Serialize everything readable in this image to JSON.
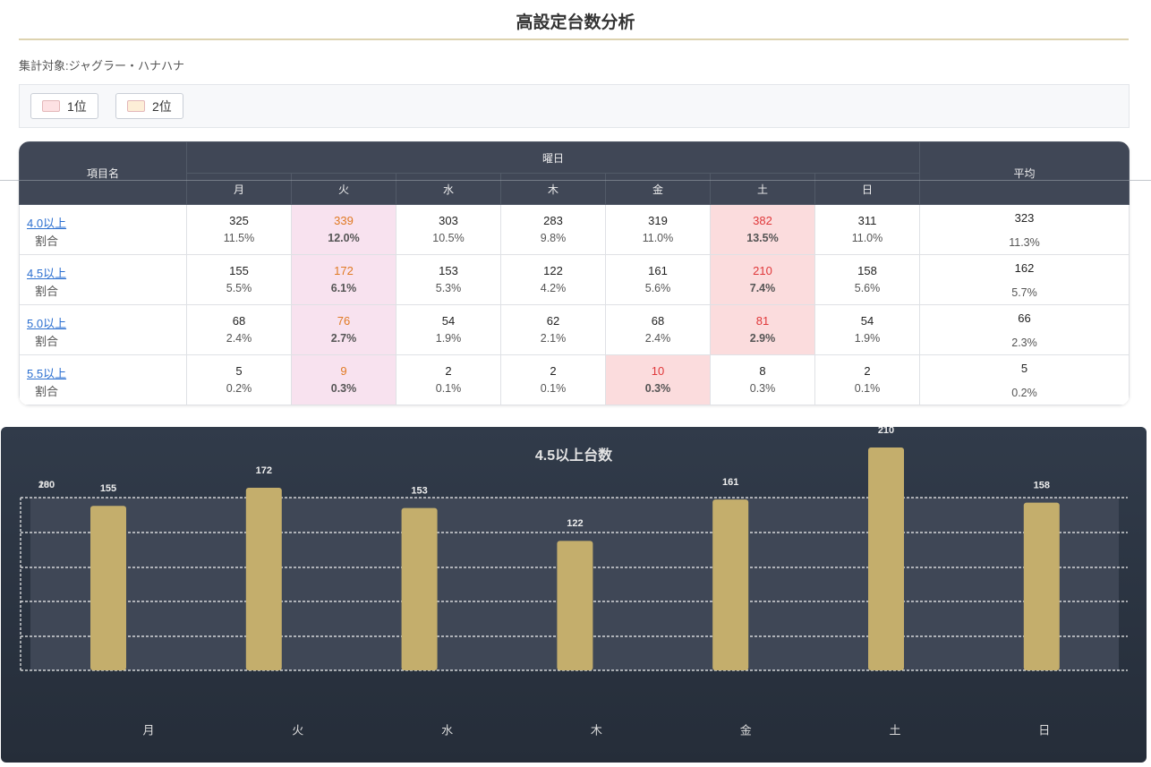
{
  "header": {
    "title": "高設定台数分析",
    "target": "集計対象:ジャグラー・ハナハナ"
  },
  "legend": [
    {
      "label": "1位",
      "color": "#fde1e3"
    },
    {
      "label": "2位",
      "color": "#fdeed7"
    }
  ],
  "table": {
    "header": {
      "name": "項目名",
      "weekday": "曜日",
      "days": [
        "月",
        "火",
        "水",
        "木",
        "金",
        "土",
        "日"
      ],
      "average": "平均"
    },
    "rows": [
      {
        "label": "4.0以上",
        "sub": "割合",
        "counts": [
          325,
          339,
          303,
          283,
          319,
          382,
          311
        ],
        "percents": [
          "11.5%",
          "12.0%",
          "10.5%",
          "9.8%",
          "11.0%",
          "13.5%",
          "11.0%"
        ],
        "avg_count": 323,
        "avg_percent": "11.3%"
      },
      {
        "label": "4.5以上",
        "sub": "割合",
        "counts": [
          155,
          172,
          153,
          122,
          161,
          210,
          158
        ],
        "percents": [
          "5.5%",
          "6.1%",
          "5.3%",
          "4.2%",
          "5.6%",
          "7.4%",
          "5.6%"
        ],
        "avg_count": 162,
        "avg_percent": "5.7%"
      },
      {
        "label": "5.0以上",
        "sub": "割合",
        "counts": [
          68,
          76,
          54,
          62,
          68,
          81,
          54
        ],
        "percents": [
          "2.4%",
          "2.7%",
          "1.9%",
          "2.1%",
          "2.4%",
          "2.9%",
          "1.9%"
        ],
        "avg_count": 66,
        "avg_percent": "2.3%"
      },
      {
        "label": "5.5以上",
        "sub": "割合",
        "counts": [
          5,
          9,
          2,
          2,
          10,
          8,
          2
        ],
        "percents": [
          "0.2%",
          "0.3%",
          "0.1%",
          "0.1%",
          "0.3%",
          "0.3%",
          "0.1%"
        ],
        "avg_count": 5,
        "avg_percent": "0.2%"
      }
    ]
  },
  "chart_data": {
    "type": "bar",
    "title": "4.5以上台数",
    "categories": [
      "月",
      "火",
      "水",
      "木",
      "金",
      "土",
      "日"
    ],
    "values": [
      155,
      172,
      153,
      122,
      161,
      210,
      158
    ],
    "color": "#c4ae6c",
    "ylim": [
      0,
      210
    ],
    "yticks": [
      180,
      200
    ]
  }
}
